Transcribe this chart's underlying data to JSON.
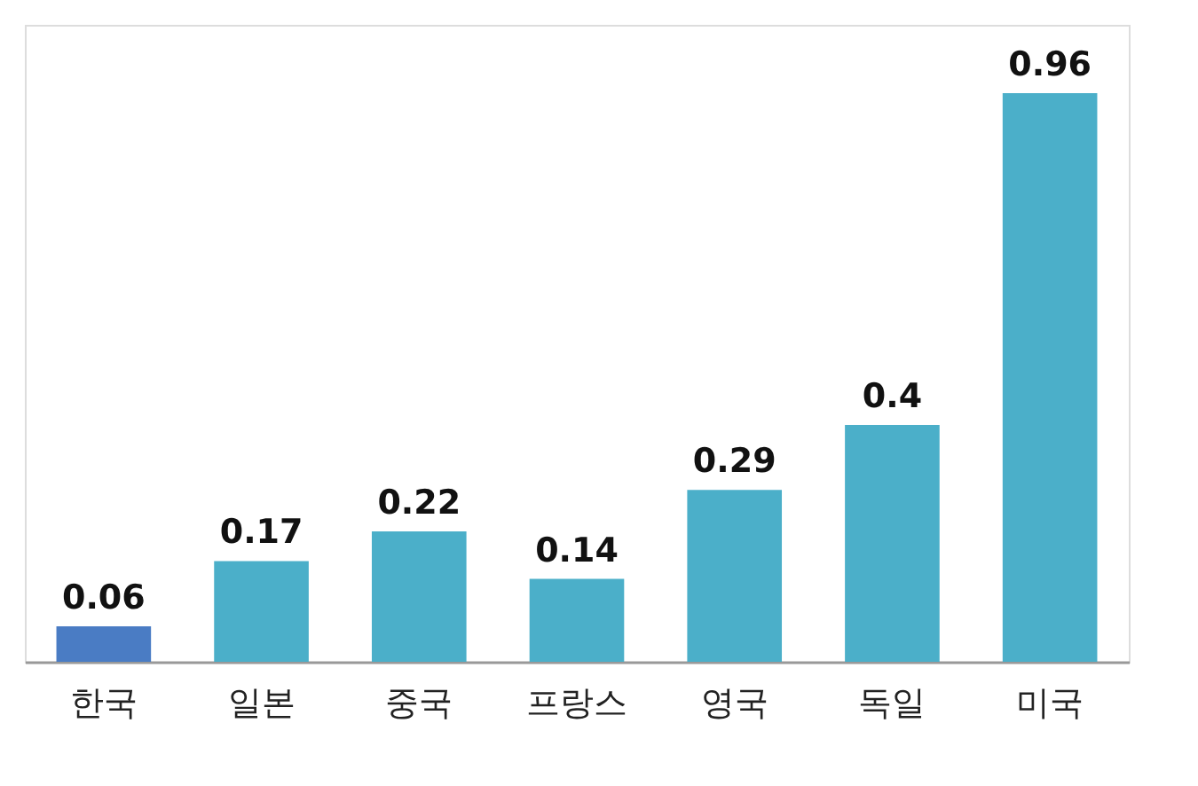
{
  "chart_data": {
    "type": "bar",
    "categories": [
      "한국",
      "일본",
      "중국",
      "프랑스",
      "영국",
      "독일",
      "미국"
    ],
    "values": [
      0.06,
      0.17,
      0.22,
      0.14,
      0.29,
      0.4,
      0.96
    ],
    "colors": [
      "#4a7cc4",
      "#4bafc9",
      "#4bafc9",
      "#4bafc9",
      "#4bafc9",
      "#4bafc9",
      "#4bafc9"
    ],
    "data_labels": true,
    "grid": false
  }
}
